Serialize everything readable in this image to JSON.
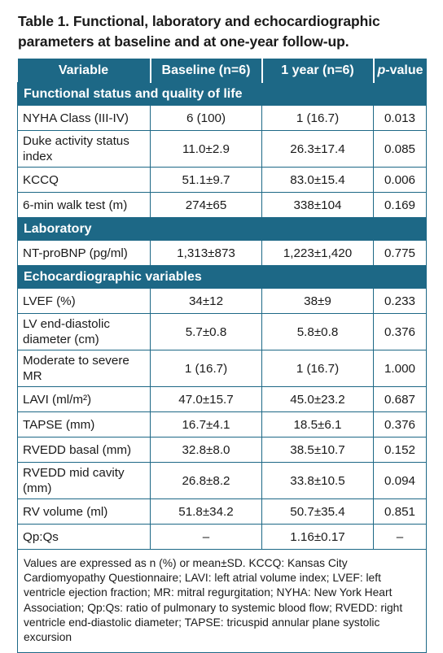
{
  "caption": "Table 1. Functional, laboratory and echocardiographic parameters at baseline and at one-year follow-up.",
  "headers": [
    "Variable",
    "Baseline (n=6)",
    "1 year (n=6)",
    "p",
    "-value"
  ],
  "sections": [
    {
      "title": "Functional status and quality of life",
      "rows": [
        [
          "NYHA Class (III-IV)",
          "6 (100)",
          "1 (16.7)",
          "0.013"
        ],
        [
          "Duke activity status index",
          "11.0±2.9",
          "26.3±17.4",
          "0.085"
        ],
        [
          "KCCQ",
          "51.1±9.7",
          "83.0±15.4",
          "0.006"
        ],
        [
          "6-min walk test (m)",
          "274±65",
          "338±104",
          "0.169"
        ]
      ]
    },
    {
      "title": "Laboratory",
      "rows": [
        [
          "NT-proBNP (pg/ml)",
          "1,313±873",
          "1,223±1,420",
          "0.775"
        ]
      ]
    },
    {
      "title": "Echocardiographic variables",
      "rows": [
        [
          "LVEF (%)",
          "34±12",
          "38±9",
          "0.233"
        ],
        [
          "LV end-diastolic diameter (cm)",
          "5.7±0.8",
          "5.8±0.8",
          "0.376"
        ],
        [
          "Moderate to severe MR",
          "1 (16.7)",
          "1 (16.7)",
          "1.000"
        ],
        [
          "LAVI (ml/m²)",
          "47.0±15.7",
          "45.0±23.2",
          "0.687"
        ],
        [
          "TAPSE (mm)",
          "16.7±4.1",
          "18.5±6.1",
          "0.376"
        ],
        [
          "RVEDD basal (mm)",
          "32.8±8.0",
          "38.5±10.7",
          "0.152"
        ],
        [
          "RVEDD mid cavity (mm)",
          "26.8±8.2",
          "33.8±10.5",
          "0.094"
        ],
        [
          "RV volume (ml)",
          "51.8±34.2",
          "50.7±35.4",
          "0.851"
        ],
        [
          "Qp:Qs",
          "–",
          "1.16±0.17",
          "–"
        ]
      ]
    }
  ],
  "footnote": "Values are expressed as n (%) or mean±SD. KCCQ: Kansas City Cardiomyopathy Questionnaire; LAVI: left atrial volume index; LVEF: left ventricle ejection fraction; MR: mitral regurgitation; NYHA: New York Heart Association; Qp:Qs: ratio of pulmonary to systemic blood flow; RVEDD: right ventricle end-diastolic diameter; TAPSE: tricuspid annular plane systolic excursion"
}
